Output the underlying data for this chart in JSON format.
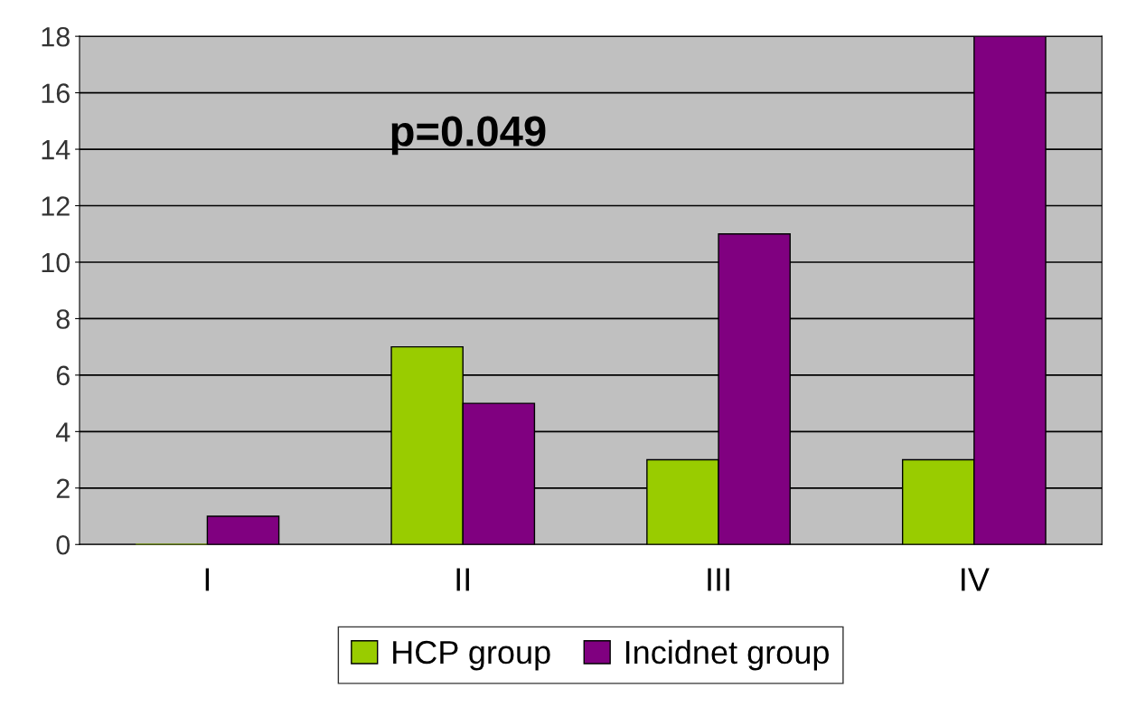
{
  "chart_data": {
    "type": "bar",
    "categories": [
      "I",
      "II",
      "III",
      "IV"
    ],
    "series": [
      {
        "name": "HCP group",
        "color": "#99cc00",
        "values": [
          0,
          7,
          3,
          3
        ]
      },
      {
        "name": "Incidnet group",
        "color": "#800080",
        "values": [
          1,
          5,
          11,
          18
        ]
      }
    ],
    "ylim": [
      0,
      18
    ],
    "yticks": [
      0,
      2,
      4,
      6,
      8,
      10,
      12,
      14,
      16,
      18
    ],
    "grid": "y",
    "legend": "bottom",
    "annotations": [
      {
        "text": "p=0.049"
      }
    ]
  }
}
